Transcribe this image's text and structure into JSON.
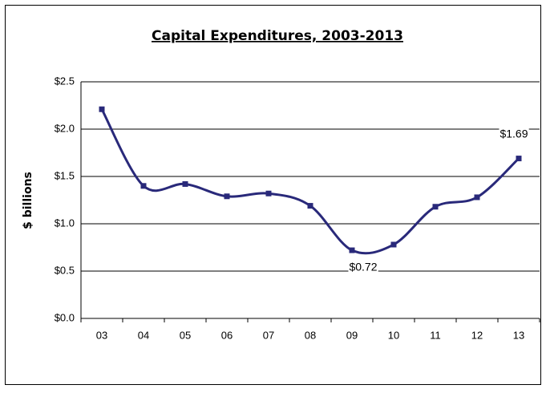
{
  "chart_data": {
    "type": "line",
    "title": "Capital Expenditures, 2003-2013",
    "y_label": "$ billions",
    "categories": [
      "03",
      "04",
      "05",
      "06",
      "07",
      "08",
      "09",
      "10",
      "11",
      "12",
      "13"
    ],
    "series": [
      {
        "name": "Capital Expenditures",
        "color": "#29297a",
        "values": [
          2.21,
          1.4,
          1.42,
          1.29,
          1.32,
          1.19,
          0.72,
          0.78,
          1.18,
          1.28,
          1.69
        ],
        "value_labels": [
          null,
          null,
          null,
          null,
          null,
          null,
          "$0.72",
          null,
          null,
          null,
          "$1.69"
        ]
      }
    ],
    "ylim": [
      0,
      2.5
    ],
    "yticks": [
      {
        "value": 0,
        "label": "$0.0"
      },
      {
        "value": 0.5,
        "label": "$0.5"
      },
      {
        "value": 1.0,
        "label": "$1.0"
      },
      {
        "value": 1.5,
        "label": "$1.5"
      },
      {
        "value": 2.0,
        "label": "$2.0"
      },
      {
        "value": 2.5,
        "label": "$2.5"
      }
    ],
    "grid": true,
    "smooth": true,
    "legend": false
  }
}
